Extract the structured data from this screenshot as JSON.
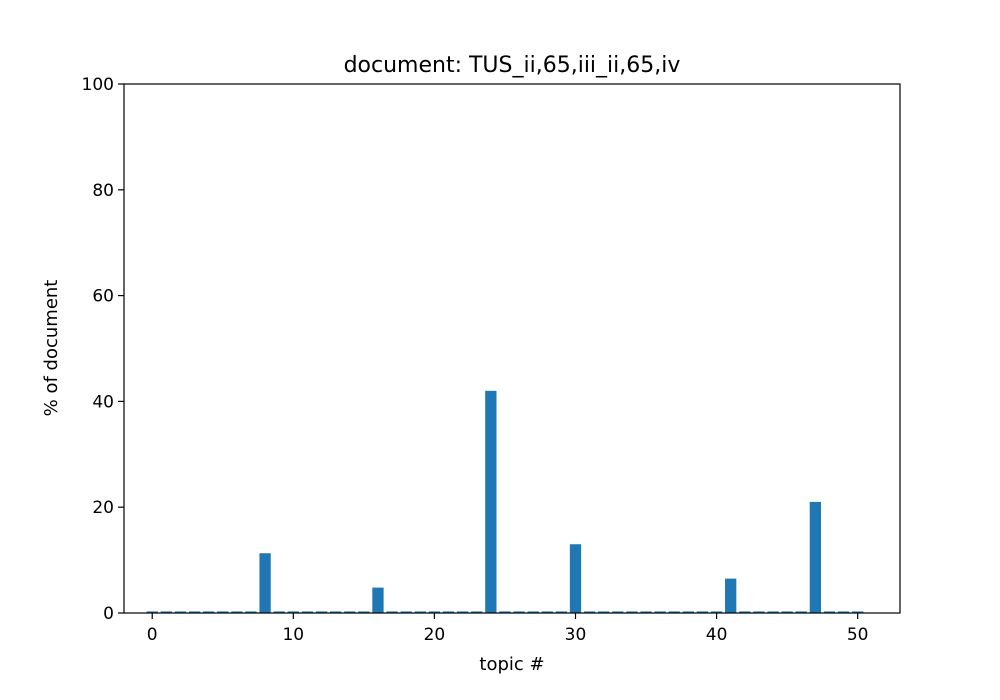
{
  "chart_data": {
    "type": "bar",
    "title": "document: TUS_ii,65,iii_ii,65,iv",
    "xlabel": "topic #",
    "ylabel": "% of document",
    "xlim": [
      -2,
      53
    ],
    "ylim": [
      0,
      100
    ],
    "xticks": [
      0,
      10,
      20,
      30,
      40,
      50
    ],
    "yticks": [
      0,
      20,
      40,
      60,
      80,
      100
    ],
    "grid": false,
    "bar_width": 0.8,
    "color": "#1f77b4",
    "x": [
      0,
      1,
      2,
      3,
      4,
      5,
      6,
      7,
      8,
      9,
      10,
      11,
      12,
      13,
      14,
      15,
      16,
      17,
      18,
      19,
      20,
      21,
      22,
      23,
      24,
      25,
      26,
      27,
      28,
      29,
      30,
      31,
      32,
      33,
      34,
      35,
      36,
      37,
      38,
      39,
      40,
      41,
      42,
      43,
      44,
      45,
      46,
      47,
      48,
      49,
      50
    ],
    "values": [
      0.3,
      0.3,
      0.3,
      0.3,
      0.3,
      0.3,
      0.3,
      0.3,
      11.3,
      0.3,
      0.3,
      0.3,
      0.3,
      0.3,
      0.3,
      0.3,
      4.8,
      0.3,
      0.3,
      0.3,
      0.3,
      0.3,
      0.3,
      0.3,
      42.0,
      0.3,
      0.3,
      0.3,
      0.3,
      0.3,
      13.0,
      0.3,
      0.3,
      0.3,
      0.3,
      0.3,
      0.3,
      0.3,
      0.3,
      0.3,
      0.3,
      6.5,
      0.3,
      0.3,
      0.3,
      0.3,
      0.3,
      21.0,
      0.3,
      0.3,
      0.3
    ]
  }
}
